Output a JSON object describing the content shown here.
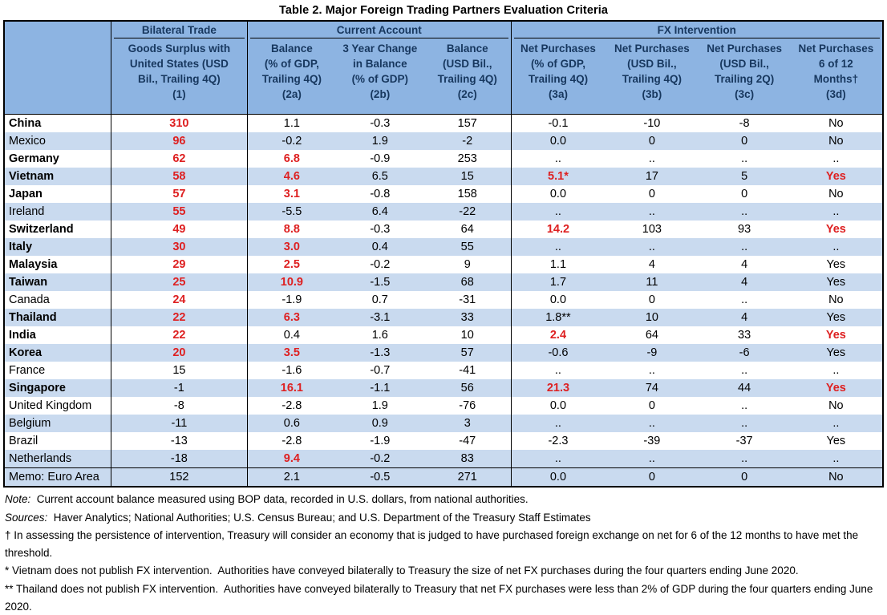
{
  "title": "Table 2. Major Foreign Trading Partners Evaluation Criteria",
  "colors": {
    "header_bg": "#8DB4E2",
    "stripe_bg": "#C9DAEF",
    "header_text": "#17375E",
    "highlight_red": "#DE2021",
    "border": "#000000"
  },
  "header": {
    "groups": [
      {
        "label": "Bilateral Trade"
      },
      {
        "label": "Current Account"
      },
      {
        "label": "FX Intervention"
      }
    ],
    "cols": [
      {
        "text": "Goods Surplus with\nUnited States (USD\nBil., Trailing 4Q)\n(1)"
      },
      {
        "text": "Balance\n(% of GDP,\nTrailing 4Q)\n(2a)"
      },
      {
        "text": "3 Year Change\nin Balance\n(% of GDP)\n(2b)"
      },
      {
        "text": "Balance\n(USD Bil.,\nTrailing 4Q)\n(2c)"
      },
      {
        "text": "Net Purchases\n(% of GDP,\nTrailing 4Q)\n(3a)"
      },
      {
        "text": "Net Purchases\n(USD Bil.,\nTrailing 4Q)\n(3b)"
      },
      {
        "text": "Net Purchases\n(USD Bil.,\nTrailing 2Q)\n(3c)"
      },
      {
        "text": "Net Purchases\n6 of 12\nMonths†\n(3d)"
      }
    ]
  },
  "table": {
    "rows": [
      {
        "country": "China",
        "bold": true,
        "shaded": false,
        "memo": false,
        "values": [
          "310",
          "1.1",
          "-0.3",
          "157",
          "-0.1",
          "-10",
          "-8",
          "No"
        ],
        "red": [
          0
        ]
      },
      {
        "country": "Mexico",
        "bold": false,
        "shaded": true,
        "memo": false,
        "values": [
          "96",
          "-0.2",
          "1.9",
          "-2",
          "0.0",
          "0",
          "0",
          "No"
        ],
        "red": [
          0
        ]
      },
      {
        "country": "Germany",
        "bold": true,
        "shaded": false,
        "memo": false,
        "values": [
          "62",
          "6.8",
          "-0.9",
          "253",
          "..",
          "..",
          "..",
          ".."
        ],
        "red": [
          0,
          1
        ]
      },
      {
        "country": "Vietnam",
        "bold": true,
        "shaded": true,
        "memo": false,
        "values": [
          "58",
          "4.6",
          "6.5",
          "15",
          "5.1*",
          "17",
          "5",
          "Yes"
        ],
        "red": [
          0,
          1,
          4,
          7
        ]
      },
      {
        "country": "Japan",
        "bold": true,
        "shaded": false,
        "memo": false,
        "values": [
          "57",
          "3.1",
          "-0.8",
          "158",
          "0.0",
          "0",
          "0",
          "No"
        ],
        "red": [
          0,
          1
        ]
      },
      {
        "country": "Ireland",
        "bold": false,
        "shaded": true,
        "memo": false,
        "values": [
          "55",
          "-5.5",
          "6.4",
          "-22",
          "..",
          "..",
          "..",
          ".."
        ],
        "red": [
          0
        ]
      },
      {
        "country": "Switzerland",
        "bold": true,
        "shaded": false,
        "memo": false,
        "values": [
          "49",
          "8.8",
          "-0.3",
          "64",
          "14.2",
          "103",
          "93",
          "Yes"
        ],
        "red": [
          0,
          1,
          4,
          7
        ]
      },
      {
        "country": "Italy",
        "bold": true,
        "shaded": true,
        "memo": false,
        "values": [
          "30",
          "3.0",
          "0.4",
          "55",
          "..",
          "..",
          "..",
          ".."
        ],
        "red": [
          0,
          1
        ]
      },
      {
        "country": "Malaysia",
        "bold": true,
        "shaded": false,
        "memo": false,
        "values": [
          "29",
          "2.5",
          "-0.2",
          "9",
          "1.1",
          "4",
          "4",
          "Yes"
        ],
        "red": [
          0,
          1
        ]
      },
      {
        "country": "Taiwan",
        "bold": true,
        "shaded": true,
        "memo": false,
        "values": [
          "25",
          "10.9",
          "-1.5",
          "68",
          "1.7",
          "11",
          "4",
          "Yes"
        ],
        "red": [
          0,
          1
        ]
      },
      {
        "country": "Canada",
        "bold": false,
        "shaded": false,
        "memo": false,
        "values": [
          "24",
          "-1.9",
          "0.7",
          "-31",
          "0.0",
          "0",
          "..",
          "No"
        ],
        "red": [
          0
        ]
      },
      {
        "country": "Thailand",
        "bold": true,
        "shaded": true,
        "memo": false,
        "values": [
          "22",
          "6.3",
          "-3.1",
          "33",
          "1.8**",
          "10",
          "4",
          "Yes"
        ],
        "red": [
          0,
          1
        ]
      },
      {
        "country": "India",
        "bold": true,
        "shaded": false,
        "memo": false,
        "values": [
          "22",
          "0.4",
          "1.6",
          "10",
          "2.4",
          "64",
          "33",
          "Yes"
        ],
        "red": [
          0,
          4,
          7
        ]
      },
      {
        "country": "Korea",
        "bold": true,
        "shaded": true,
        "memo": false,
        "values": [
          "20",
          "3.5",
          "-1.3",
          "57",
          "-0.6",
          "-9",
          "-6",
          "Yes"
        ],
        "red": [
          0,
          1
        ]
      },
      {
        "country": "France",
        "bold": false,
        "shaded": false,
        "memo": false,
        "values": [
          "15",
          "-1.6",
          "-0.7",
          "-41",
          "..",
          "..",
          "..",
          ".."
        ],
        "red": []
      },
      {
        "country": "Singapore",
        "bold": true,
        "shaded": true,
        "memo": false,
        "values": [
          "-1",
          "16.1",
          "-1.1",
          "56",
          "21.3",
          "74",
          "44",
          "Yes"
        ],
        "red": [
          1,
          4,
          7
        ]
      },
      {
        "country": "United Kingdom",
        "bold": false,
        "shaded": false,
        "memo": false,
        "values": [
          "-8",
          "-2.8",
          "1.9",
          "-76",
          "0.0",
          "0",
          "..",
          "No"
        ],
        "red": []
      },
      {
        "country": "Belgium",
        "bold": false,
        "shaded": true,
        "memo": false,
        "values": [
          "-11",
          "0.6",
          "0.9",
          "3",
          "..",
          "..",
          "..",
          ".."
        ],
        "red": []
      },
      {
        "country": "Brazil",
        "bold": false,
        "shaded": false,
        "memo": false,
        "values": [
          "-13",
          "-2.8",
          "-1.9",
          "-47",
          "-2.3",
          "-39",
          "-37",
          "Yes"
        ],
        "red": []
      },
      {
        "country": "Netherlands",
        "bold": false,
        "shaded": true,
        "memo": false,
        "values": [
          "-18",
          "9.4",
          "-0.2",
          "83",
          "..",
          "..",
          "..",
          ".."
        ],
        "red": [
          1
        ]
      },
      {
        "country": "Memo: Euro Area",
        "bold": false,
        "shaded": true,
        "memo": true,
        "values": [
          "152",
          "2.1",
          "-0.5",
          "271",
          "0.0",
          "0",
          "0",
          "No"
        ],
        "red": []
      }
    ]
  },
  "notes": [
    {
      "prefix": "Note:",
      "text": "  Current account balance measured using BOP data, recorded in U.S. dollars, from national authorities."
    },
    {
      "prefix": "Sources:",
      "text": "  Haver Analytics; National Authorities; U.S. Census Bureau; and U.S. Department of the Treasury Staff Estimates"
    },
    {
      "prefix": "",
      "text": "† In assessing the persistence of intervention, Treasury will consider an economy that is judged to have purchased foreign exchange on net for 6 of the 12 months to have met the threshold."
    },
    {
      "prefix": "",
      "text": "* Vietnam does not publish FX intervention.  Authorities have conveyed bilaterally to Treasury the size of net FX purchases during the four quarters ending June 2020."
    },
    {
      "prefix": "",
      "text": "** Thailand does not publish FX intervention.  Authorities have conveyed bilaterally to Treasury that net FX purchases were less than 2% of GDP during the four quarters ending June 2020."
    }
  ]
}
